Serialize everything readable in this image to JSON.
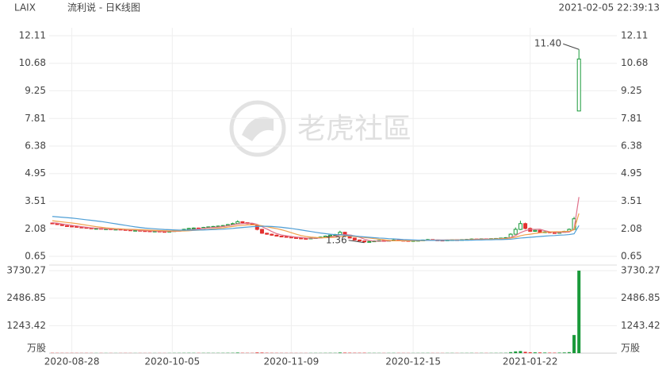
{
  "header": {
    "symbol": "LAIX",
    "name": "流利说 - 日K线图",
    "timestamp": "2021-02-05 22:39:13"
  },
  "watermark": "老虎社區",
  "chart_data": {
    "type": "candlestick",
    "ylim": [
      0.65,
      12.11
    ],
    "yticks": [
      12.11,
      10.68,
      9.25,
      7.81,
      6.38,
      4.95,
      3.51,
      2.08,
      0.65
    ],
    "xticks": [
      {
        "value": 4,
        "label": "2020-08-28"
      },
      {
        "value": 24.6,
        "label": "2020-10-05"
      },
      {
        "value": 49,
        "label": "2020-11-09"
      },
      {
        "value": 74,
        "label": "2020-12-15"
      },
      {
        "value": 98,
        "label": "2021-01-22"
      }
    ],
    "grid": true,
    "up_color": "#1a9a3a",
    "down_color": "#e2302f",
    "annotations": [
      {
        "text": "11.40",
        "value": 11.4,
        "index": 108
      },
      {
        "text": "1.36",
        "value": 1.36,
        "index": 64
      }
    ],
    "ohlc": [
      [
        2.38,
        2.4,
        2.32,
        2.35
      ],
      [
        2.35,
        2.37,
        2.28,
        2.3
      ],
      [
        2.3,
        2.32,
        2.23,
        2.25
      ],
      [
        2.24,
        2.27,
        2.2,
        2.22
      ],
      [
        2.22,
        2.24,
        2.18,
        2.2
      ],
      [
        2.2,
        2.22,
        2.16,
        2.18
      ],
      [
        2.17,
        2.19,
        2.13,
        2.15
      ],
      [
        2.15,
        2.17,
        2.1,
        2.12
      ],
      [
        2.12,
        2.14,
        2.08,
        2.1
      ],
      [
        2.09,
        2.13,
        2.07,
        2.1
      ],
      [
        2.1,
        2.12,
        2.06,
        2.08
      ],
      [
        2.07,
        2.1,
        2.05,
        2.08
      ],
      [
        2.08,
        2.09,
        2.03,
        2.05
      ],
      [
        2.05,
        2.08,
        2.03,
        2.06
      ],
      [
        2.06,
        2.07,
        2.02,
        2.04
      ],
      [
        2.04,
        2.05,
        2.0,
        2.02
      ],
      [
        2.02,
        2.04,
        1.98,
        2.0
      ],
      [
        1.99,
        2.03,
        1.97,
        2.0
      ],
      [
        2.0,
        2.01,
        1.96,
        1.98
      ],
      [
        1.98,
        2.0,
        1.95,
        1.97
      ],
      [
        1.97,
        1.98,
        1.93,
        1.95
      ],
      [
        1.95,
        1.98,
        1.93,
        1.96
      ],
      [
        1.96,
        1.97,
        1.92,
        1.94
      ],
      [
        1.94,
        1.96,
        1.91,
        1.93
      ],
      [
        1.93,
        1.97,
        1.92,
        1.95
      ],
      [
        1.95,
        2.0,
        1.94,
        1.98
      ],
      [
        1.98,
        2.02,
        1.96,
        2.0
      ],
      [
        2.0,
        2.08,
        1.99,
        2.05
      ],
      [
        2.05,
        2.13,
        2.04,
        2.1
      ],
      [
        2.1,
        2.15,
        2.08,
        2.12
      ],
      [
        2.12,
        2.14,
        2.07,
        2.1
      ],
      [
        2.1,
        2.18,
        2.09,
        2.15
      ],
      [
        2.15,
        2.2,
        2.13,
        2.18
      ],
      [
        2.18,
        2.23,
        2.16,
        2.2
      ],
      [
        2.2,
        2.25,
        2.18,
        2.22
      ],
      [
        2.22,
        2.28,
        2.2,
        2.25
      ],
      [
        2.25,
        2.33,
        2.24,
        2.3
      ],
      [
        2.3,
        2.4,
        2.28,
        2.35
      ],
      [
        2.35,
        2.52,
        2.33,
        2.45
      ],
      [
        2.45,
        2.47,
        2.36,
        2.4
      ],
      [
        2.4,
        2.42,
        2.32,
        2.35
      ],
      [
        2.35,
        2.37,
        2.26,
        2.3
      ],
      [
        2.28,
        2.3,
        2.0,
        2.05
      ],
      [
        2.05,
        2.08,
        1.82,
        1.85
      ],
      [
        1.85,
        1.88,
        1.77,
        1.8
      ],
      [
        1.8,
        1.83,
        1.72,
        1.75
      ],
      [
        1.75,
        1.78,
        1.68,
        1.7
      ],
      [
        1.7,
        1.72,
        1.65,
        1.68
      ],
      [
        1.68,
        1.7,
        1.62,
        1.65
      ],
      [
        1.65,
        1.67,
        1.6,
        1.62
      ],
      [
        1.62,
        1.64,
        1.57,
        1.6
      ],
      [
        1.6,
        1.62,
        1.55,
        1.58
      ],
      [
        1.58,
        1.6,
        1.54,
        1.57
      ],
      [
        1.57,
        1.63,
        1.56,
        1.6
      ],
      [
        1.6,
        1.65,
        1.58,
        1.62
      ],
      [
        1.62,
        1.68,
        1.6,
        1.65
      ],
      [
        1.65,
        1.73,
        1.63,
        1.7
      ],
      [
        1.7,
        1.78,
        1.68,
        1.75
      ],
      [
        1.75,
        1.82,
        1.73,
        1.78
      ],
      [
        1.78,
        1.98,
        1.76,
        1.9
      ],
      [
        1.9,
        1.92,
        1.72,
        1.75
      ],
      [
        1.75,
        1.77,
        1.58,
        1.6
      ],
      [
        1.6,
        1.62,
        1.48,
        1.5
      ],
      [
        1.5,
        1.52,
        1.43,
        1.45
      ],
      [
        1.45,
        1.47,
        1.36,
        1.4
      ],
      [
        1.4,
        1.45,
        1.38,
        1.42
      ],
      [
        1.42,
        1.48,
        1.41,
        1.45
      ],
      [
        1.45,
        1.5,
        1.44,
        1.47
      ],
      [
        1.47,
        1.49,
        1.43,
        1.45
      ],
      [
        1.45,
        1.5,
        1.44,
        1.48
      ],
      [
        1.48,
        1.53,
        1.47,
        1.5
      ],
      [
        1.5,
        1.52,
        1.46,
        1.48
      ],
      [
        1.48,
        1.5,
        1.45,
        1.47
      ],
      [
        1.47,
        1.49,
        1.44,
        1.46
      ],
      [
        1.46,
        1.49,
        1.45,
        1.47
      ],
      [
        1.47,
        1.5,
        1.46,
        1.48
      ],
      [
        1.48,
        1.52,
        1.47,
        1.5
      ],
      [
        1.5,
        1.55,
        1.49,
        1.52
      ],
      [
        1.52,
        1.53,
        1.48,
        1.5
      ],
      [
        1.5,
        1.52,
        1.47,
        1.49
      ],
      [
        1.49,
        1.51,
        1.46,
        1.48
      ],
      [
        1.48,
        1.52,
        1.47,
        1.5
      ],
      [
        1.5,
        1.53,
        1.49,
        1.51
      ],
      [
        1.51,
        1.52,
        1.48,
        1.5
      ],
      [
        1.5,
        1.54,
        1.49,
        1.52
      ],
      [
        1.52,
        1.55,
        1.51,
        1.53
      ],
      [
        1.53,
        1.58,
        1.52,
        1.55
      ],
      [
        1.55,
        1.56,
        1.52,
        1.54
      ],
      [
        1.54,
        1.58,
        1.53,
        1.56
      ],
      [
        1.56,
        1.57,
        1.53,
        1.55
      ],
      [
        1.55,
        1.59,
        1.54,
        1.57
      ],
      [
        1.57,
        1.6,
        1.56,
        1.58
      ],
      [
        1.58,
        1.62,
        1.57,
        1.6
      ],
      [
        1.6,
        1.65,
        1.59,
        1.62
      ],
      [
        1.62,
        1.85,
        1.61,
        1.8
      ],
      [
        1.8,
        2.15,
        1.78,
        2.05
      ],
      [
        2.05,
        2.5,
        2.02,
        2.35
      ],
      [
        2.35,
        2.4,
        2.05,
        2.1
      ],
      [
        2.1,
        2.15,
        1.92,
        1.95
      ],
      [
        1.95,
        2.05,
        1.93,
        2.0
      ],
      [
        2.0,
        2.02,
        1.88,
        1.9
      ],
      [
        1.9,
        1.95,
        1.88,
        1.92
      ],
      [
        1.92,
        1.93,
        1.86,
        1.88
      ],
      [
        1.88,
        1.9,
        1.83,
        1.85
      ],
      [
        1.85,
        1.93,
        1.84,
        1.9
      ],
      [
        1.9,
        1.98,
        1.89,
        1.95
      ],
      [
        1.95,
        2.1,
        1.94,
        2.05
      ],
      [
        2.05,
        2.7,
        2.03,
        2.6
      ],
      [
        8.2,
        11.4,
        8.2,
        10.9
      ]
    ],
    "series": [
      {
        "color": "#e0708a",
        "values": [
          2.4,
          2.37,
          2.33,
          2.3,
          2.26,
          2.23,
          2.19,
          2.16,
          2.13,
          2.11,
          2.09,
          2.08,
          2.07,
          2.06,
          2.06,
          2.05,
          2.03,
          2.02,
          2.0,
          1.99,
          1.98,
          1.97,
          1.96,
          1.95,
          1.95,
          1.95,
          1.96,
          1.98,
          2.02,
          2.05,
          2.07,
          2.1,
          2.13,
          2.15,
          2.17,
          2.2,
          2.24,
          2.28,
          2.33,
          2.35,
          2.37,
          2.37,
          2.31,
          2.19,
          2.07,
          1.94,
          1.83,
          1.76,
          1.72,
          1.68,
          1.65,
          1.63,
          1.6,
          1.59,
          1.59,
          1.6,
          1.63,
          1.66,
          1.7,
          1.76,
          1.78,
          1.76,
          1.71,
          1.64,
          1.54,
          1.47,
          1.44,
          1.44,
          1.44,
          1.45,
          1.47,
          1.48,
          1.48,
          1.47,
          1.48,
          1.47,
          1.48,
          1.49,
          1.49,
          1.5,
          1.5,
          1.5,
          1.5,
          1.5,
          1.5,
          1.51,
          1.52,
          1.53,
          1.54,
          1.55,
          1.55,
          1.56,
          1.57,
          1.58,
          1.63,
          1.73,
          1.88,
          1.98,
          2.05,
          2.05,
          2.06,
          1.98,
          1.93,
          1.9,
          1.89,
          1.9,
          1.91,
          2.07,
          3.73
        ]
      },
      {
        "color": "#f0a04b",
        "values": [
          2.5,
          2.47,
          2.44,
          2.41,
          2.38,
          2.35,
          2.31,
          2.27,
          2.23,
          2.19,
          2.16,
          2.13,
          2.11,
          2.09,
          2.08,
          2.06,
          2.05,
          2.04,
          2.03,
          2.02,
          2.01,
          2.0,
          1.99,
          1.98,
          1.97,
          1.97,
          1.97,
          1.97,
          1.98,
          2.0,
          2.01,
          2.03,
          2.05,
          2.08,
          2.11,
          2.13,
          2.17,
          2.2,
          2.24,
          2.26,
          2.28,
          2.29,
          2.28,
          2.24,
          2.19,
          2.14,
          2.09,
          2.03,
          1.96,
          1.88,
          1.8,
          1.73,
          1.68,
          1.65,
          1.63,
          1.62,
          1.62,
          1.63,
          1.64,
          1.68,
          1.7,
          1.7,
          1.68,
          1.66,
          1.63,
          1.6,
          1.57,
          1.54,
          1.51,
          1.48,
          1.46,
          1.46,
          1.46,
          1.46,
          1.47,
          1.47,
          1.47,
          1.48,
          1.48,
          1.48,
          1.49,
          1.49,
          1.5,
          1.5,
          1.5,
          1.5,
          1.51,
          1.52,
          1.52,
          1.53,
          1.54,
          1.55,
          1.56,
          1.57,
          1.6,
          1.64,
          1.72,
          1.77,
          1.8,
          1.84,
          1.87,
          1.9,
          1.92,
          1.93,
          1.93,
          1.94,
          1.95,
          2.03,
          2.88
        ]
      },
      {
        "color": "#4f9fd6",
        "values": [
          2.72,
          2.7,
          2.68,
          2.66,
          2.64,
          2.61,
          2.58,
          2.55,
          2.52,
          2.49,
          2.46,
          2.42,
          2.38,
          2.34,
          2.3,
          2.26,
          2.22,
          2.18,
          2.15,
          2.12,
          2.1,
          2.08,
          2.06,
          2.04,
          2.03,
          2.02,
          2.01,
          2.01,
          2.01,
          2.01,
          2.02,
          2.02,
          2.03,
          2.04,
          2.05,
          2.06,
          2.08,
          2.1,
          2.13,
          2.15,
          2.17,
          2.19,
          2.2,
          2.21,
          2.21,
          2.2,
          2.18,
          2.16,
          2.13,
          2.1,
          2.06,
          2.02,
          1.98,
          1.94,
          1.9,
          1.86,
          1.83,
          1.8,
          1.78,
          1.77,
          1.75,
          1.73,
          1.71,
          1.68,
          1.66,
          1.64,
          1.62,
          1.6,
          1.59,
          1.57,
          1.56,
          1.54,
          1.52,
          1.51,
          1.5,
          1.49,
          1.49,
          1.48,
          1.48,
          1.48,
          1.48,
          1.48,
          1.48,
          1.48,
          1.49,
          1.49,
          1.49,
          1.5,
          1.5,
          1.51,
          1.51,
          1.52,
          1.52,
          1.53,
          1.54,
          1.57,
          1.6,
          1.62,
          1.64,
          1.66,
          1.68,
          1.7,
          1.72,
          1.73,
          1.75,
          1.76,
          1.78,
          1.82,
          2.25
        ]
      }
    ],
    "volume": {
      "ylim": [
        0,
        3730.27
      ],
      "yticks": [
        1243.42,
        2486.85,
        3730.27
      ],
      "unit": "万股",
      "values": [
        12,
        10,
        9,
        8,
        9,
        8,
        7,
        8,
        7,
        6,
        7,
        6,
        6,
        5,
        6,
        7,
        6,
        5,
        6,
        5,
        6,
        5,
        6,
        5,
        7,
        8,
        9,
        10,
        12,
        10,
        9,
        10,
        11,
        9,
        10,
        11,
        13,
        15,
        25,
        14,
        12,
        11,
        30,
        25,
        15,
        12,
        10,
        9,
        8,
        8,
        7,
        6,
        6,
        7,
        8,
        8,
        10,
        12,
        11,
        28,
        22,
        18,
        15,
        14,
        16,
        10,
        9,
        8,
        7,
        8,
        9,
        8,
        7,
        6,
        6,
        7,
        8,
        9,
        7,
        6,
        6,
        7,
        8,
        6,
        7,
        8,
        9,
        7,
        8,
        7,
        8,
        9,
        10,
        12,
        45,
        80,
        95,
        60,
        40,
        35,
        30,
        25,
        20,
        18,
        22,
        30,
        45,
        820,
        3730.27
      ]
    }
  }
}
